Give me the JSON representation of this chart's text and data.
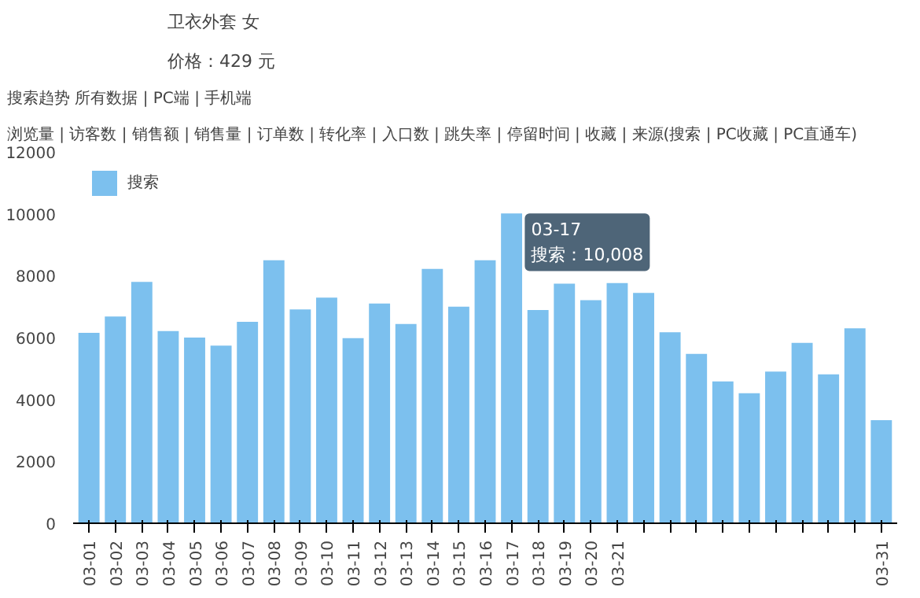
{
  "chart_data": {
    "type": "bar",
    "title": "卫衣外套 女",
    "subtitle": "价格：429 元",
    "categories": [
      "03-01",
      "03-02",
      "03-03",
      "03-04",
      "03-05",
      "03-06",
      "03-07",
      "03-08",
      "03-09",
      "03-10",
      "03-11",
      "03-12",
      "03-13",
      "03-14",
      "03-15",
      "03-16",
      "03-17",
      "03-18",
      "03-19",
      "03-20",
      "03-21",
      null,
      null,
      null,
      null,
      null,
      null,
      null,
      null,
      null,
      "03-31"
    ],
    "series": [
      {
        "name": "搜索",
        "color": "#7cc0ee",
        "values": [
          6150,
          6680,
          7800,
          6210,
          6000,
          5740,
          6510,
          8500,
          6910,
          7290,
          5980,
          7100,
          6440,
          8220,
          7000,
          8500,
          10008,
          6890,
          7740,
          7210,
          7760,
          7440,
          6170,
          5470,
          4580,
          4200,
          4900,
          5830,
          4810,
          6300,
          3330
        ]
      }
    ],
    "ylim": [
      0,
      12000
    ],
    "yticks": [
      0,
      2000,
      4000,
      6000,
      8000,
      10000,
      12000
    ],
    "grid": false,
    "legend": "top left",
    "annotations": [
      "搜索趋势  所有数据 | PC端 | 手机端",
      "浏览量 | 访客数 | 销售额 | 销售量 | 订单数 | 转化率 | 入口数 | 跳失率 | 停留时间 | 收藏 | 来源(搜索 | PC收藏 | PC直通车)",
      {
        "text": "03-17\n搜索：10,008",
        "x": "03-17",
        "y": 10008
      }
    ]
  }
}
